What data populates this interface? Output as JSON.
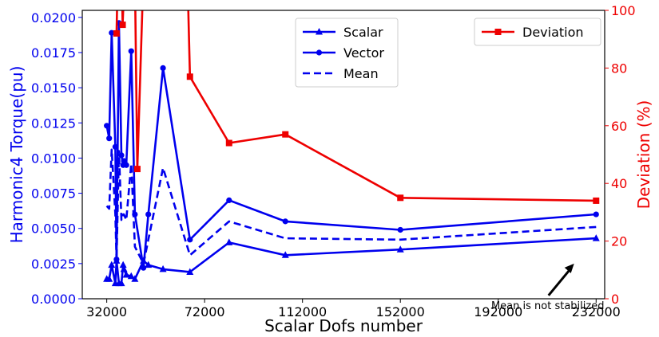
{
  "chart_data": {
    "type": "line",
    "xlabel": "Scalar Dofs number",
    "ylabel_left": "Harmonic4 Torque(pu)",
    "ylabel_right": "Deviation (%)",
    "xlim": [
      22000,
      235500
    ],
    "ylim_left": [
      0,
      0.0205
    ],
    "ylim_right": [
      0,
      100
    ],
    "x_ticks": [
      32000,
      72000,
      112000,
      152000,
      192000,
      232000
    ],
    "y_ticks_left": [
      0.0,
      0.0025,
      0.005,
      0.0075,
      0.01,
      0.0125,
      0.015,
      0.0175,
      0.02
    ],
    "y_tick_labels_left": [
      "0.0000",
      "0.0025",
      "0.0050",
      "0.0075",
      "0.0100",
      "0.0125",
      "0.0150",
      "0.0175",
      "0.0200"
    ],
    "y_ticks_right": [
      0,
      20,
      40,
      60,
      80,
      100
    ],
    "y_tick_labels_right": [
      "0",
      "20",
      "40",
      "60",
      "80",
      "100"
    ],
    "x_tick_labels": [
      "32000",
      "72000",
      "112000",
      "152000",
      "192000",
      "232000"
    ],
    "grid": false,
    "x": [
      32000,
      33000,
      34000,
      35500,
      36000,
      37000,
      38000,
      38700,
      39000,
      40000,
      42000,
      43500,
      47000,
      49000,
      55000,
      66000,
      82000,
      105000,
      152000,
      232000
    ],
    "series": [
      {
        "name": "Scalar",
        "axis": "left",
        "color": "#0000ee",
        "marker": "triangle",
        "values": [
          0.0014,
          0.0014,
          0.0024,
          0.0011,
          0.0027,
          0.0011,
          0.0011,
          0.0024,
          0.0021,
          0.0017,
          0.0016,
          0.0014,
          0.0027,
          0.0024,
          0.0021,
          0.0019,
          0.004,
          0.0031,
          0.0035,
          0.0043
        ]
      },
      {
        "name": "Vector",
        "axis": "left",
        "color": "#0000ee",
        "marker": "circle",
        "values": [
          0.0123,
          0.0114,
          0.0189,
          0.0108,
          0.0028,
          0.0196,
          0.0102,
          0.0095,
          0.0098,
          0.0095,
          0.0176,
          0.006,
          0.0022,
          0.006,
          0.0164,
          0.0042,
          0.007,
          0.0055,
          0.0049,
          0.006
        ]
      },
      {
        "name": "Mean",
        "axis": "left",
        "color": "#0000ee",
        "dash": true,
        "values": [
          0.0066,
          0.0064,
          0.0106,
          0.006,
          0.0027,
          0.0105,
          0.0056,
          0.006,
          0.006,
          0.0056,
          0.0096,
          0.0037,
          0.0025,
          0.0042,
          0.0093,
          0.0031,
          0.0055,
          0.0043,
          0.0042,
          0.0051
        ]
      },
      {
        "name": "Deviation",
        "axis": "right",
        "color": "#ee0000",
        "marker": "square",
        "x": [
          36000,
          37400,
          38500,
          42500,
          44500,
          49500,
          63000,
          66000,
          82000,
          105000,
          152000,
          232000
        ],
        "values": [
          92,
          150,
          95,
          180,
          45,
          180,
          180,
          77,
          54,
          57,
          35,
          34
        ]
      }
    ],
    "legend": [
      {
        "position": "top-center",
        "entries": [
          "Scalar",
          "Vector",
          "Mean"
        ]
      },
      {
        "position": "top-right",
        "entries": [
          "Deviation"
        ]
      }
    ],
    "annotation": {
      "text": "Mean is not stabilized",
      "x": 223000,
      "y_left": 0.0025
    }
  }
}
